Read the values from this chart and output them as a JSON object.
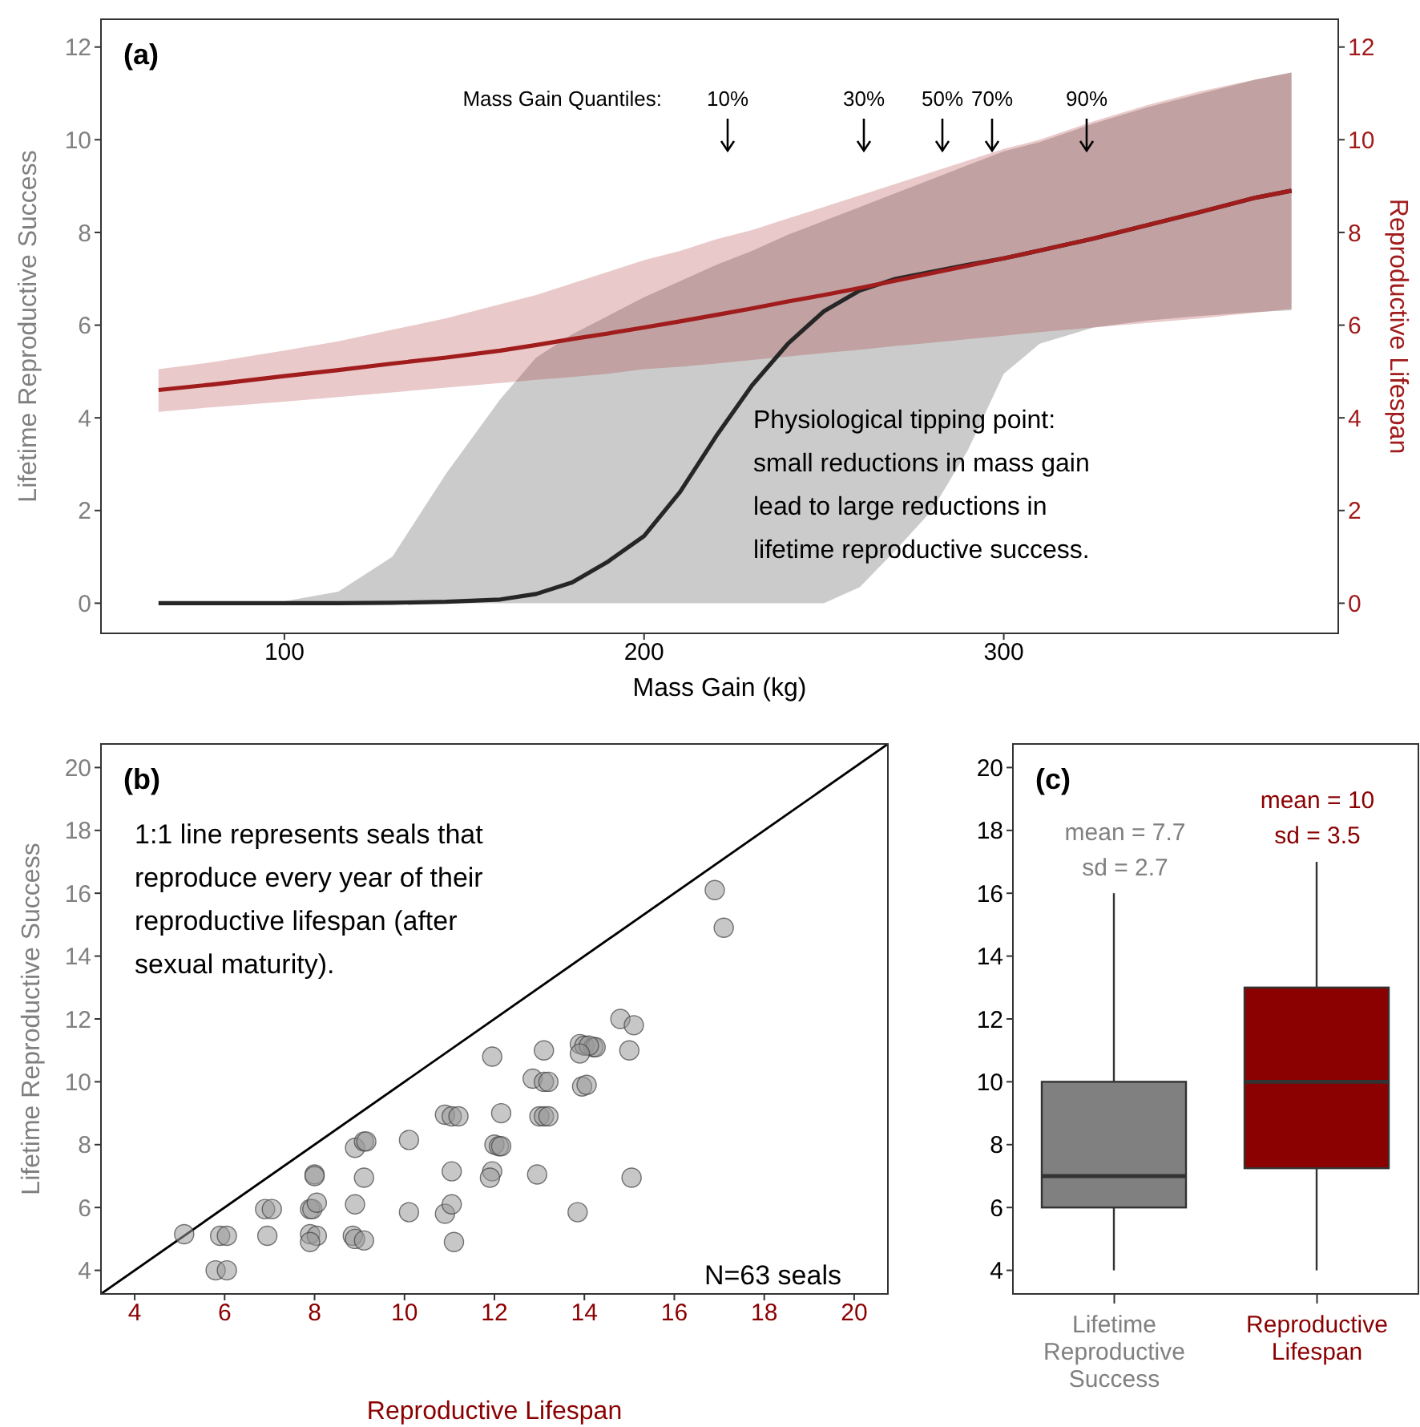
{
  "chart_data": [
    {
      "type": "line",
      "title": "(a)",
      "xlabel": "Mass Gain (kg)",
      "ylabel": "Lifetime Reproductive Success",
      "y2label": "Reproductive Lifespan",
      "x": [
        65,
        80,
        100,
        115,
        130,
        145,
        160,
        170,
        180,
        190,
        200,
        210,
        220,
        230,
        240,
        250,
        260,
        270,
        280,
        290,
        300,
        310,
        325,
        340,
        355,
        370,
        380
      ],
      "series": [
        {
          "color": "#262626",
          "values": [
            0,
            0,
            0,
            0,
            0.01,
            0.03,
            0.08,
            0.2,
            0.45,
            0.9,
            1.45,
            2.4,
            3.6,
            4.7,
            5.6,
            6.3,
            6.75,
            7.0,
            7.15,
            7.3,
            7.44,
            7.61,
            7.87,
            8.16,
            8.45,
            8.75,
            8.9
          ],
          "lower": [
            0,
            0,
            0,
            0,
            0,
            0,
            0,
            0,
            0,
            0,
            0,
            0,
            0,
            0,
            0,
            0,
            0.35,
            1.15,
            2.0,
            3.3,
            4.95,
            5.6,
            5.95,
            6.1,
            6.2,
            6.28,
            6.32
          ],
          "upper": [
            0,
            0.01,
            0.04,
            0.25,
            1.0,
            2.8,
            4.4,
            5.3,
            5.8,
            6.2,
            6.6,
            6.95,
            7.3,
            7.6,
            7.95,
            8.25,
            8.55,
            8.85,
            9.15,
            9.45,
            9.75,
            9.95,
            10.35,
            10.7,
            11.0,
            11.3,
            11.45
          ]
        },
        {
          "color": "#a11c1c",
          "axis": "y2",
          "values": [
            4.6,
            4.72,
            4.9,
            5.03,
            5.17,
            5.3,
            5.45,
            5.57,
            5.7,
            5.82,
            5.95,
            6.08,
            6.22,
            6.36,
            6.51,
            6.65,
            6.8,
            6.96,
            7.12,
            7.28,
            7.44,
            7.61,
            7.87,
            8.16,
            8.45,
            8.75,
            8.9
          ],
          "lower": [
            4.13,
            4.23,
            4.35,
            4.45,
            4.55,
            4.65,
            4.75,
            4.82,
            4.88,
            4.95,
            5.05,
            5.1,
            5.17,
            5.25,
            5.32,
            5.4,
            5.47,
            5.55,
            5.62,
            5.7,
            5.77,
            5.85,
            5.95,
            6.05,
            6.15,
            6.27,
            6.35
          ],
          "upper": [
            5.05,
            5.2,
            5.45,
            5.65,
            5.9,
            6.15,
            6.45,
            6.65,
            6.9,
            7.15,
            7.4,
            7.6,
            7.85,
            8.05,
            8.3,
            8.55,
            8.8,
            9.05,
            9.3,
            9.55,
            9.8,
            10.0,
            10.4,
            10.75,
            11.05,
            11.3,
            11.45
          ]
        }
      ],
      "xlim": [
        49,
        393
      ],
      "xticks": [
        100,
        200,
        300
      ],
      "ylim": [
        -0.65,
        12.6
      ],
      "yticks": [
        0,
        2,
        4,
        6,
        8,
        10,
        12
      ],
      "y2lim": [
        -0.65,
        12.6
      ],
      "y2ticks": [
        0,
        2,
        4,
        6,
        8,
        10,
        12
      ],
      "annotations": [
        "Mass Gain Quantiles:",
        "10%",
        "30%",
        "50%",
        "70%",
        "90%",
        "Physiological tipping point:\nsmall reductions in mass gain\nlead to large reductions in\nlifetime reproductive success."
      ]
    },
    {
      "type": "scatter",
      "title": "(b)",
      "xlabel": "Reproductive Lifespan",
      "ylabel": "Lifetime Reproductive Success",
      "series": [
        {
          "type": "scatter",
          "marker": "circle",
          "color": "#999999",
          "x": [
            16.9,
            17.1,
            14.8,
            15.1,
            15.0,
            13.9,
            14.0,
            14.2,
            14.25,
            14.1,
            13.9,
            13.1,
            11.95,
            12.85,
            13.1,
            13.2,
            13.95,
            14.05,
            10.9,
            11.05,
            11.2,
            12.15,
            13.0,
            13.1,
            13.2,
            8.9,
            9.1,
            9.15,
            10.1,
            12.0,
            12.1,
            12.15,
            8.0,
            8.0,
            9.1,
            11.05,
            11.95,
            11.9,
            12.95,
            15.05,
            6.9,
            7.05,
            7.9,
            7.95,
            8.05,
            8.9,
            10.1,
            10.9,
            11.05,
            13.85,
            5.1,
            5.9,
            6.05,
            6.95,
            7.9,
            8.05,
            8.85,
            8.9,
            9.1,
            7.9,
            11.1,
            5.8,
            6.05
          ],
          "values": [
            16.1,
            14.9,
            12.0,
            11.8,
            11.0,
            11.2,
            11.15,
            11.1,
            11.1,
            11.15,
            10.9,
            11.0,
            10.8,
            10.1,
            10.0,
            10.0,
            9.85,
            9.9,
            8.95,
            8.9,
            8.9,
            9.0,
            8.9,
            8.9,
            8.9,
            7.9,
            8.1,
            8.1,
            8.15,
            8.0,
            7.95,
            7.95,
            7.05,
            7.0,
            6.95,
            7.15,
            7.15,
            6.95,
            7.05,
            6.95,
            5.95,
            5.95,
            5.95,
            5.95,
            6.15,
            6.1,
            5.85,
            5.8,
            6.1,
            5.85,
            5.15,
            5.1,
            5.1,
            5.1,
            5.15,
            5.1,
            5.1,
            5.0,
            4.95,
            4.9,
            4.9,
            4.0,
            4.0
          ]
        },
        {
          "type": "line",
          "color": "#000000",
          "x": [
            3.25,
            20.75
          ],
          "values": [
            3.25,
            20.75
          ]
        }
      ],
      "xlim": [
        3.25,
        20.75
      ],
      "xticks": [
        4,
        6,
        8,
        10,
        12,
        14,
        16,
        18,
        20
      ],
      "ylim": [
        3.25,
        20.75
      ],
      "yticks": [
        4,
        6,
        8,
        10,
        12,
        14,
        16,
        18,
        20
      ],
      "annotations": [
        "1:1 line represents seals that\nreproduce every year of their\nreproductive lifespan (after\nsexual maturity).",
        "N=63 seals"
      ]
    },
    {
      "type": "box",
      "title": "(c)",
      "categories": [
        "Lifetime Reproductive Success",
        "Reproductive Lifespan"
      ],
      "colors": [
        "#808080",
        "#8b0000"
      ],
      "boxes": [
        {
          "low": 4,
          "q1": 6,
          "median": 7,
          "q3": 10,
          "high": 16
        },
        {
          "low": 4,
          "q1": 7.25,
          "median": 10,
          "q3": 13,
          "high": 17
        }
      ],
      "ylim": [
        3.25,
        20.75
      ],
      "yticks": [
        4,
        6,
        8,
        10,
        12,
        14,
        16,
        18,
        20
      ],
      "annotations": [
        "mean = 7.7\nsd = 2.7",
        "mean = 10\nsd = 3.5"
      ]
    }
  ]
}
